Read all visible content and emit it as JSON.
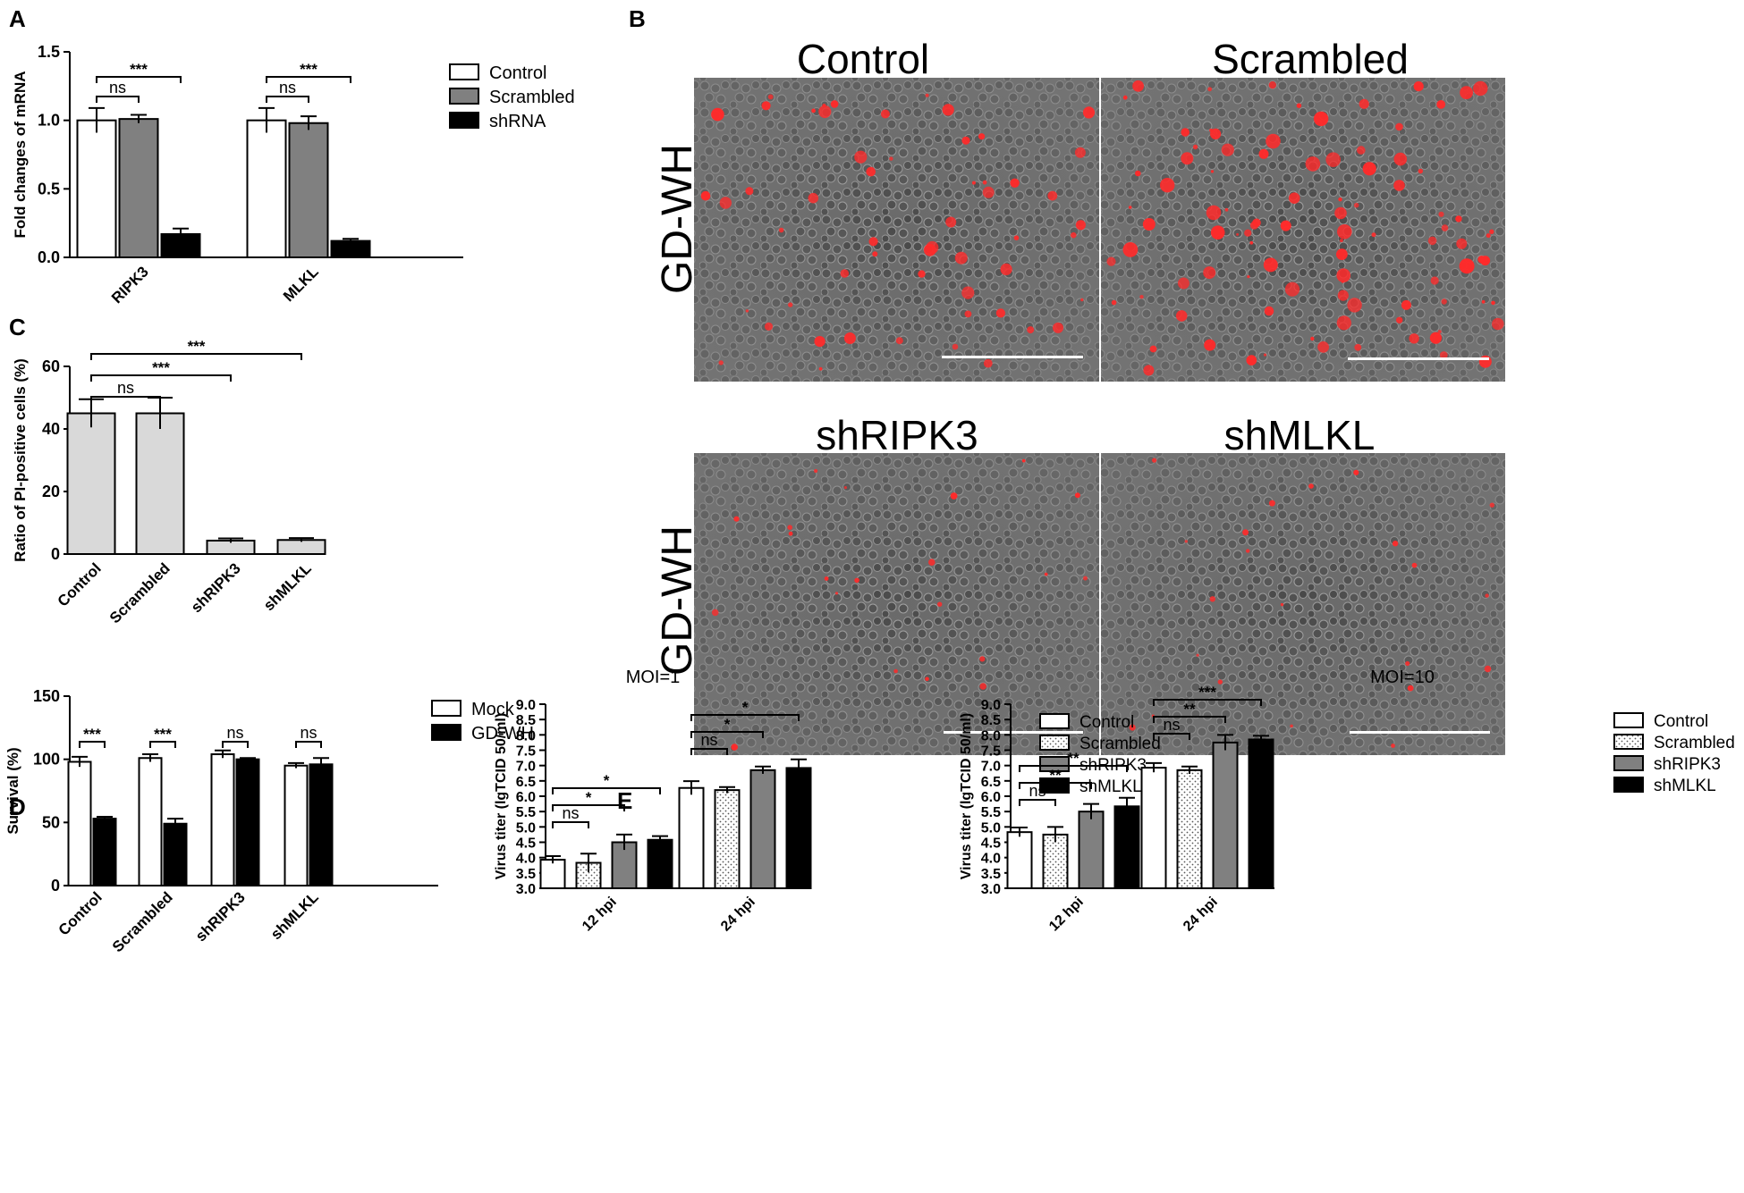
{
  "figure": {
    "panel_labels": [
      "A",
      "B",
      "C",
      "D",
      "E"
    ]
  },
  "micrographs": {
    "columns": [
      "Control",
      "Scrambled",
      "shRIPK3",
      "shMLKL"
    ],
    "row_label": "GD-WH"
  },
  "chart_data": [
    {
      "id": "A",
      "type": "bar",
      "title": "",
      "xlabel": "",
      "ylabel": "Fold changes of mRNA",
      "ylim": [
        0,
        1.5
      ],
      "yticks": [
        "0.0",
        "0.5",
        "1.0",
        "1.5"
      ],
      "categories": [
        "RIPK3",
        "MLKL"
      ],
      "series": [
        {
          "name": "Control",
          "values": [
            1.0,
            1.0
          ],
          "errors": [
            0.09,
            0.09
          ],
          "fill": "#ffffff"
        },
        {
          "name": "Scrambled",
          "values": [
            1.01,
            0.98
          ],
          "errors": [
            0.03,
            0.05
          ],
          "fill": "#808080"
        },
        {
          "name": "shRNA",
          "values": [
            0.17,
            0.12
          ],
          "errors": [
            0.04,
            0.015
          ],
          "fill": "#000000"
        }
      ],
      "legend": "right",
      "significance": [
        {
          "group": 0,
          "from": 0,
          "to": 1,
          "label": "ns"
        },
        {
          "group": 0,
          "from": 0,
          "to": 2,
          "label": "***"
        },
        {
          "group": 1,
          "from": 0,
          "to": 1,
          "label": "ns"
        },
        {
          "group": 1,
          "from": 0,
          "to": 2,
          "label": "***"
        }
      ]
    },
    {
      "id": "C",
      "type": "bar",
      "title": "",
      "xlabel": "",
      "ylabel": "Ratio of PI-positive cells (%)",
      "ylim": [
        0,
        60
      ],
      "yticks": [
        "0",
        "20",
        "40",
        "60"
      ],
      "categories": [
        "Control",
        "Scrambled",
        "shRIPK3",
        "shMLKL"
      ],
      "values": [
        45,
        45,
        4.3,
        4.5
      ],
      "errors": [
        4.5,
        5,
        0.7,
        0.6
      ],
      "fill": "#d9d9d9",
      "significance": [
        {
          "from": 0,
          "to": 1,
          "label": "ns"
        },
        {
          "from": 0,
          "to": 2,
          "label": "***"
        },
        {
          "from": 0,
          "to": 3,
          "label": "***"
        }
      ]
    },
    {
      "id": "D",
      "type": "bar",
      "title": "",
      "xlabel": "",
      "ylabel": "Survival (%)",
      "ylim": [
        0,
        150
      ],
      "yticks": [
        "0",
        "50",
        "100",
        "150"
      ],
      "categories": [
        "Control",
        "Scrambled",
        "shRIPK3",
        "shMLKL"
      ],
      "series": [
        {
          "name": "Mock",
          "values": [
            98,
            101,
            104,
            95
          ],
          "errors": [
            4,
            3,
            3,
            2
          ],
          "fill": "#ffffff"
        },
        {
          "name": "GD-WH",
          "values": [
            53,
            49,
            100,
            96
          ],
          "errors": [
            1.5,
            4,
            1,
            5
          ],
          "fill": "#000000"
        }
      ],
      "legend": "right",
      "significance": [
        {
          "group": 0,
          "from": 0,
          "to": 1,
          "label": "***"
        },
        {
          "group": 1,
          "from": 0,
          "to": 1,
          "label": "***"
        },
        {
          "group": 2,
          "from": 0,
          "to": 1,
          "label": "ns"
        },
        {
          "group": 3,
          "from": 0,
          "to": 1,
          "label": "ns"
        }
      ]
    },
    {
      "id": "E1",
      "type": "bar",
      "title": "MOI=1",
      "xlabel": "",
      "ylabel": "Virus titer (lgTCID 50/ml)",
      "ylim": [
        3.0,
        9.0
      ],
      "yticks": [
        "3.0",
        "3.5",
        "4.0",
        "4.5",
        "5.0",
        "5.5",
        "6.0",
        "6.5",
        "7.0",
        "7.5",
        "8.0",
        "8.5",
        "9.0"
      ],
      "categories": [
        "12 hpi",
        "24 hpi"
      ],
      "series": [
        {
          "name": "Control",
          "values": [
            3.93,
            6.27
          ],
          "errors": [
            0.12,
            0.22
          ],
          "fill": "#ffffff"
        },
        {
          "name": "Scrambled",
          "values": [
            3.83,
            6.2
          ],
          "errors": [
            0.3,
            0.1
          ],
          "fill": "dots"
        },
        {
          "name": "shRIPK3",
          "values": [
            4.5,
            6.85
          ],
          "errors": [
            0.25,
            0.12
          ],
          "fill": "#808080"
        },
        {
          "name": "shMLKL",
          "values": [
            4.58,
            6.92
          ],
          "errors": [
            0.12,
            0.28
          ],
          "fill": "#000000"
        }
      ],
      "legend": "right",
      "significance": [
        {
          "group": 0,
          "from": 0,
          "to": 1,
          "label": "ns"
        },
        {
          "group": 0,
          "from": 0,
          "to": 2,
          "label": "*"
        },
        {
          "group": 0,
          "from": 0,
          "to": 3,
          "label": "*"
        },
        {
          "group": 1,
          "from": 0,
          "to": 1,
          "label": "ns"
        },
        {
          "group": 1,
          "from": 0,
          "to": 2,
          "label": "*"
        },
        {
          "group": 1,
          "from": 0,
          "to": 3,
          "label": "*"
        }
      ]
    },
    {
      "id": "E2",
      "type": "bar",
      "title": "MOI=10",
      "xlabel": "",
      "ylabel": "Virus titer (lgTCID 50/ml)",
      "ylim": [
        3.0,
        9.0
      ],
      "yticks": [
        "3.0",
        "3.5",
        "4.0",
        "4.5",
        "5.0",
        "5.5",
        "6.0",
        "6.5",
        "7.0",
        "7.5",
        "8.0",
        "8.5",
        "9.0"
      ],
      "categories": [
        "12 hpi",
        "24 hpi"
      ],
      "series": [
        {
          "name": "Control",
          "values": [
            4.83,
            6.93
          ],
          "errors": [
            0.15,
            0.15
          ],
          "fill": "#ffffff"
        },
        {
          "name": "Scrambled",
          "values": [
            4.75,
            6.85
          ],
          "errors": [
            0.25,
            0.12
          ],
          "fill": "dots"
        },
        {
          "name": "shRIPK3",
          "values": [
            5.5,
            7.75
          ],
          "errors": [
            0.25,
            0.25
          ],
          "fill": "#808080"
        },
        {
          "name": "shMLKL",
          "values": [
            5.67,
            7.85
          ],
          "errors": [
            0.28,
            0.12
          ],
          "fill": "#000000"
        }
      ],
      "legend": "right",
      "significance": [
        {
          "group": 0,
          "from": 0,
          "to": 1,
          "label": "ns"
        },
        {
          "group": 0,
          "from": 0,
          "to": 2,
          "label": "**"
        },
        {
          "group": 0,
          "from": 0,
          "to": 3,
          "label": "**"
        },
        {
          "group": 1,
          "from": 0,
          "to": 1,
          "label": "ns"
        },
        {
          "group": 1,
          "from": 0,
          "to": 2,
          "label": "**"
        },
        {
          "group": 1,
          "from": 0,
          "to": 3,
          "label": "***"
        }
      ]
    }
  ]
}
